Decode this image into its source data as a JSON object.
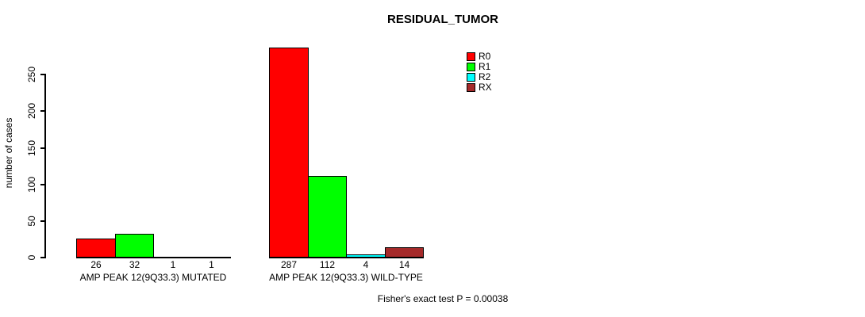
{
  "chart_data": {
    "type": "bar",
    "title": "RESIDUAL_TUMOR",
    "ylabel": "number of cases",
    "xlabel": "",
    "categories": [
      "AMP PEAK 12(9Q33.3) MUTATED",
      "AMP PEAK 12(9Q33.3) WILD-TYPE"
    ],
    "series": [
      {
        "name": "R0",
        "color": "#FF0000",
        "values": [
          26,
          287
        ]
      },
      {
        "name": "R1",
        "color": "#00FF00",
        "values": [
          32,
          112
        ]
      },
      {
        "name": "R2",
        "color": "#00FFFF",
        "values": [
          1,
          4
        ]
      },
      {
        "name": "RX",
        "color": "#A52A2A",
        "values": [
          1,
          14
        ]
      }
    ],
    "yticks": [
      0,
      50,
      100,
      150,
      200,
      250
    ],
    "ylim": [
      0,
      290
    ],
    "grid": false,
    "legend_position": "top-right",
    "annotation": "Fisher's exact test P = 0.00038"
  }
}
